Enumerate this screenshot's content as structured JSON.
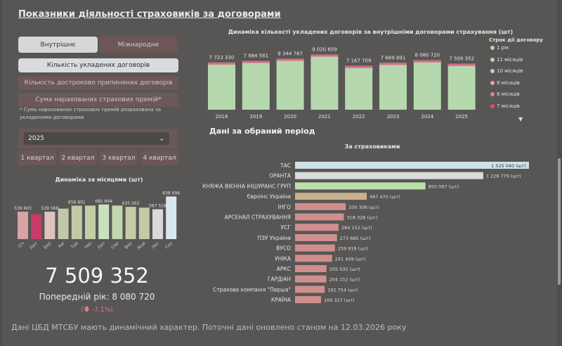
{
  "title": "Показники діяльності страховиків за договорами",
  "tabs": {
    "internal": "Внутрішнє",
    "international": "Міжнародне"
  },
  "metrics": {
    "count": "Кількість укладених договорів",
    "terminated": "Кількість достроково припинених договорів",
    "premiums": "Сума нарахованих страхових премій*"
  },
  "note": "* Сума нарахованих страхових премій розрахована за укладеними договорами",
  "year_select": {
    "value": "2025"
  },
  "quarters": [
    "1 квартал",
    "2 квартал",
    "3 квартал",
    "4 квартал"
  ],
  "summary": {
    "total": "7 509 352",
    "previous": "Попередній рік: 8 080 720",
    "change_icon": "arrow-down-icon",
    "change": "-7.1%)",
    "change_prefix": "(",
    "arrow": "🡇"
  },
  "footer": "Дані ЦБД МТСБУ мають динамічний характер. Поточні дані оновлено станом на 12.03.2026 року",
  "period_title": "Дані за обраний період",
  "legend": {
    "title": "Строк дії договору",
    "items": [
      {
        "label": "1 рік",
        "color": "#b5d7ac"
      },
      {
        "label": "11 місяців",
        "color": "#c8c8c8"
      },
      {
        "label": "10 місяців",
        "color": "#c8c8c8"
      },
      {
        "label": "9 місяців",
        "color": "#e8a0a0"
      },
      {
        "label": "8 місяців",
        "color": "#e08090"
      },
      {
        "label": "7 місяців",
        "color": "#d8507a"
      }
    ]
  },
  "colors": {
    "annual_bar": "#b6d8ae",
    "annual_top": "#d76b86"
  },
  "chart_data": [
    {
      "type": "bar",
      "title": "Динаміка кількості укладених договорів за внутрішніми договорами страхування (шт)",
      "categories": [
        "2018",
        "2019",
        "2020",
        "2021",
        "2022",
        "2023",
        "2024",
        "2025"
      ],
      "values": [
        7723330,
        7984581,
        8344787,
        9020659,
        7167709,
        7669891,
        8080720,
        7509352
      ],
      "labels": [
        "7 723 330",
        "7 984 581",
        "8 344 787",
        "9 020 659",
        "7 167 709",
        "7 669 891",
        "8 080 720",
        "7 509 352"
      ],
      "ylim": [
        0,
        9200000
      ]
    },
    {
      "type": "bar",
      "title": "Динаміка за місяцями (шт)",
      "categories": [
        "Січ",
        "Лют",
        "Бер",
        "Кві",
        "Тра",
        "Чер",
        "Лип",
        "Сер",
        "Вер",
        "Жов",
        "Лис",
        "Гру"
      ],
      "values": [
        539603,
        489000,
        539568,
        600000,
        658801,
        660000,
        681844,
        660000,
        635263,
        620000,
        587528,
        838696
      ],
      "labels": [
        "539 603",
        "",
        "539 568",
        "",
        "658 801",
        "",
        "681 844",
        "",
        "635 263",
        "",
        "587 528",
        "838 696"
      ],
      "colors": [
        "#d7a3a6",
        "#c73d6a",
        "#dfc2bd",
        "#c2c8a7",
        "#c0cba3",
        "#c2cea5",
        "#c7e2bc",
        "#c3d7ad",
        "#c5cca8",
        "#c6c8aa",
        "#d9d9d9",
        "#d7e8ee"
      ],
      "ylim": [
        0,
        900000
      ]
    },
    {
      "type": "bar",
      "orientation": "horizontal",
      "title": "За страховиками",
      "categories": [
        "ТАС",
        "ОРАНТА",
        "КНЯЖА ВІЄННА ІНШУРАНС ГРУП",
        "Євроінс Україна",
        "ІНГО",
        "АРСЕНАЛ СТРАХУВАННЯ",
        "УСГ",
        "ПЗУ Україна",
        "ВУСО",
        "УНІКА",
        "АРКС",
        "ГАРДІАН",
        "Страхова компанія \"Перша\"",
        "КРАЇНА"
      ],
      "values": [
        1525040,
        1226779,
        850067,
        467470,
        330306,
        318328,
        284152,
        273685,
        259819,
        241449,
        205035,
        204152,
        192754,
        169327
      ],
      "labels": [
        "1 525 040 (шт)",
        "1 226 779 (шт)",
        "850 067 (шт)",
        "467 470 (шт)",
        "330 306 (шт)",
        "318 328 (шт)",
        "284 152 (шт)",
        "273 685 (шт)",
        "259 819 (шт)",
        "241 449 (шт)",
        "205 035 (шт)",
        "204 152 (шт)",
        "192 754 (шт)",
        "169 327 (шт)"
      ],
      "colors": [
        "#cde3e9",
        "#d9dcdc",
        "#b9e0a8",
        "#c7b08d",
        "#cf8f8d",
        "#cf8f8d",
        "#cf8f8d",
        "#cf8f8d",
        "#cf8f8d",
        "#cf8f8d",
        "#cf8f8d",
        "#cf8f8d",
        "#cf8f8d",
        "#cf8f8d"
      ],
      "xlim": [
        0,
        1525040
      ]
    }
  ]
}
